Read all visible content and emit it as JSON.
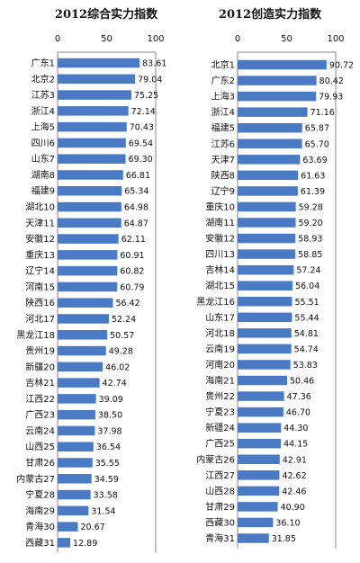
{
  "chart_data": [
    {
      "type": "bar",
      "orientation": "horizontal",
      "title": "2012综合实力指数",
      "xlim": [
        0,
        100
      ],
      "ticks": [
        "0",
        "50",
        "100"
      ],
      "categories": [
        "广东1",
        "北京2",
        "江苏3",
        "浙江4",
        "上海5",
        "四川6",
        "山东7",
        "湖南8",
        "福建9",
        "湖北10",
        "天津11",
        "安徽12",
        "重庆13",
        "辽宁14",
        "河南15",
        "陕西16",
        "河北17",
        "黑龙江18",
        "贵州19",
        "新疆20",
        "吉林21",
        "江西22",
        "广西23",
        "云南24",
        "山西25",
        "甘肃26",
        "内蒙古27",
        "宁夏28",
        "海南29",
        "青海30",
        "西藏31"
      ],
      "values": [
        83.61,
        79.04,
        75.25,
        72.14,
        70.43,
        69.54,
        69.3,
        66.81,
        65.34,
        64.98,
        64.87,
        62.11,
        60.91,
        60.82,
        60.79,
        56.42,
        52.24,
        50.57,
        49.28,
        46.02,
        42.74,
        39.09,
        38.5,
        37.98,
        36.54,
        35.55,
        34.59,
        33.58,
        31.54,
        20.67,
        12.89
      ],
      "value_labels": [
        "83.61",
        "79.04",
        "75.25",
        "72.14",
        "70.43",
        "69.54",
        "69.30",
        "66.81",
        "65.34",
        "64.98",
        "64.87",
        "62.11",
        "60.91",
        "60.82",
        "60.79",
        "56.42",
        "52.24",
        "50.57",
        "49.28",
        "46.02",
        "42.74",
        "39.09",
        "38.50",
        "37.98",
        "36.54",
        "35.55",
        "34.59",
        "33.58",
        "31.54",
        "20.67",
        "12.89"
      ],
      "bar_color": "#4a7ac4",
      "grid": false
    },
    {
      "type": "bar",
      "orientation": "horizontal",
      "title": "2012创造实力指数",
      "xlim": [
        0,
        100
      ],
      "ticks": [
        "0",
        "50",
        "100"
      ],
      "categories": [
        "北京1",
        "广东2",
        "上海3",
        "浙江4",
        "福建5",
        "江苏6",
        "天津7",
        "陕西8",
        "辽宁9",
        "重庆10",
        "湖南11",
        "安徽12",
        "四川13",
        "吉林14",
        "湖北15",
        "黑龙江16",
        "山东17",
        "河北18",
        "云南19",
        "河南20",
        "海南21",
        "贵州22",
        "宁夏23",
        "新疆24",
        "广西25",
        "内蒙古26",
        "江西27",
        "山西28",
        "甘肃29",
        "西藏30",
        "青海31"
      ],
      "values": [
        90.72,
        80.42,
        79.93,
        71.16,
        65.87,
        65.7,
        63.69,
        61.63,
        61.39,
        59.28,
        59.2,
        58.93,
        58.85,
        57.24,
        56.04,
        55.51,
        55.44,
        54.81,
        54.74,
        53.83,
        50.46,
        47.36,
        46.7,
        44.3,
        44.15,
        42.91,
        42.62,
        42.46,
        40.9,
        36.1,
        31.85
      ],
      "value_labels": [
        "90.72",
        "80.42",
        "79.93",
        "71.16",
        "65.87",
        "65.70",
        "63.69",
        "61.63",
        "61.39",
        "59.28",
        "59.20",
        "58.93",
        "58.85",
        "57.24",
        "56.04",
        "55.51",
        "55.44",
        "54.81",
        "54.74",
        "53.83",
        "50.46",
        "47.36",
        "46.70",
        "44.30",
        "44.15",
        "42.91",
        "42.62",
        "42.46",
        "40.90",
        "36.10",
        "31.85"
      ],
      "bar_color": "#4a7ac4",
      "grid": false
    }
  ]
}
